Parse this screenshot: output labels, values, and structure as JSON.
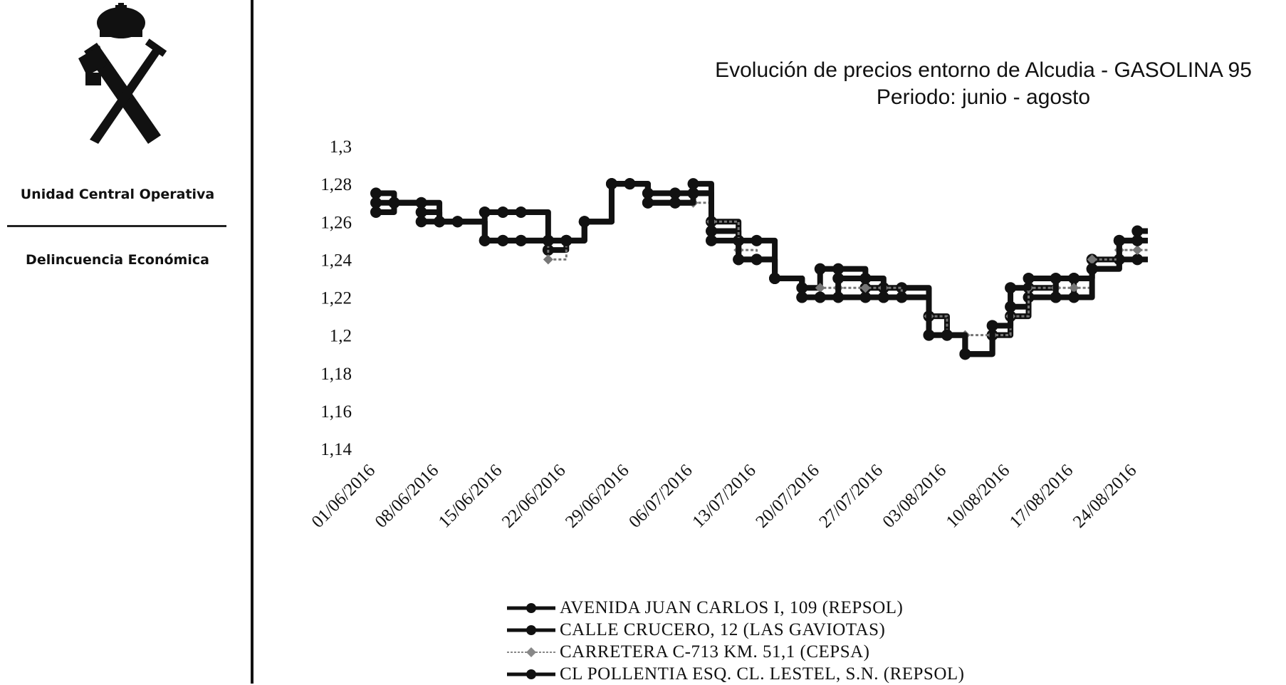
{
  "sidebar": {
    "org_name": "Unidad Central Operativa",
    "dept_name": "Delincuencia Económica",
    "emblem_icon": "guardia-civil-emblem-icon"
  },
  "chart_data": {
    "type": "line",
    "title": "Evolución de precios entorno de Alcudia - GASOLINA 95",
    "subtitle": "Periodo: junio - agosto",
    "xlabel": "",
    "ylabel": "",
    "ylim": [
      1.14,
      1.3
    ],
    "yticks": [
      "1,3",
      "1,28",
      "1,26",
      "1,24",
      "1,22",
      "1,2",
      "1,18",
      "1,16",
      "1,14"
    ],
    "xticks": [
      "01/06/2016",
      "08/06/2016",
      "15/06/2016",
      "22/06/2016",
      "29/06/2016",
      "06/07/2016",
      "13/07/2016",
      "20/07/2016",
      "27/07/2016",
      "03/08/2016",
      "10/08/2016",
      "17/08/2016",
      "24/08/2016"
    ],
    "x": [
      "01/06/2016",
      "03/06/2016",
      "06/06/2016",
      "08/06/2016",
      "10/06/2016",
      "13/06/2016",
      "15/06/2016",
      "17/06/2016",
      "20/06/2016",
      "22/06/2016",
      "24/06/2016",
      "27/06/2016",
      "29/06/2016",
      "01/07/2016",
      "04/07/2016",
      "06/07/2016",
      "08/07/2016",
      "11/07/2016",
      "13/07/2016",
      "15/07/2016",
      "18/07/2016",
      "20/07/2016",
      "22/07/2016",
      "25/07/2016",
      "27/07/2016",
      "29/07/2016",
      "01/08/2016",
      "03/08/2016",
      "05/08/2016",
      "08/08/2016",
      "10/08/2016",
      "12/08/2016",
      "15/08/2016",
      "17/08/2016",
      "19/08/2016",
      "22/08/2016",
      "24/08/2016"
    ],
    "grid": false,
    "legend_position": "bottom",
    "series": [
      {
        "name": "AVENIDA JUAN CARLOS I, 109 (REPSOL)",
        "color": "#111111",
        "marker": "circle",
        "values": [
          1.275,
          1.27,
          1.27,
          1.26,
          1.26,
          1.25,
          1.25,
          1.25,
          1.25,
          1.25,
          1.26,
          1.28,
          1.28,
          1.275,
          1.275,
          1.275,
          1.26,
          1.24,
          1.24,
          1.23,
          1.22,
          1.22,
          1.22,
          1.22,
          1.22,
          1.22,
          1.21,
          1.2,
          1.19,
          1.2,
          1.21,
          1.22,
          1.22,
          1.23,
          1.24,
          1.25,
          1.255
        ]
      },
      {
        "name": "CALLE CRUCERO, 12 (LAS GAVIOTAS)",
        "color": "#111111",
        "marker": "circle",
        "values": [
          1.265,
          1.27,
          1.265,
          1.26,
          1.26,
          1.265,
          1.265,
          1.265,
          1.245,
          1.25,
          1.26,
          1.28,
          1.28,
          1.27,
          1.27,
          1.275,
          1.255,
          1.25,
          1.25,
          1.23,
          1.225,
          1.235,
          1.235,
          1.225,
          1.225,
          1.225,
          1.2,
          1.2,
          1.19,
          1.2,
          1.215,
          1.225,
          1.23,
          1.23,
          1.235,
          1.24,
          1.24
        ]
      },
      {
        "name": "CARRETERA C-713 KM. 51,1 (CEPSA)",
        "color": "#777777",
        "marker": "diamond",
        "values": [
          1.27,
          1.27,
          1.26,
          1.26,
          1.26,
          1.25,
          1.25,
          1.25,
          1.24,
          1.25,
          1.26,
          1.28,
          1.28,
          1.27,
          1.27,
          1.27,
          1.26,
          1.245,
          1.24,
          1.23,
          1.22,
          1.225,
          1.225,
          1.225,
          1.225,
          1.22,
          1.21,
          1.2,
          1.2,
          1.2,
          1.21,
          1.225,
          1.225,
          1.225,
          1.24,
          1.245,
          1.245
        ]
      },
      {
        "name": "CL POLLENTIA ESQ. CL. LESTEL, S.N. (REPSOL)",
        "color": "#111111",
        "marker": "circle",
        "values": [
          1.27,
          1.27,
          1.26,
          1.26,
          1.26,
          1.25,
          1.25,
          1.25,
          1.25,
          1.25,
          1.26,
          1.28,
          1.28,
          1.27,
          1.27,
          1.28,
          1.25,
          1.24,
          1.24,
          1.23,
          1.22,
          1.22,
          1.23,
          1.23,
          1.22,
          1.22,
          1.2,
          1.2,
          1.19,
          1.205,
          1.225,
          1.23,
          1.22,
          1.22,
          1.235,
          1.25,
          1.25
        ]
      }
    ]
  }
}
